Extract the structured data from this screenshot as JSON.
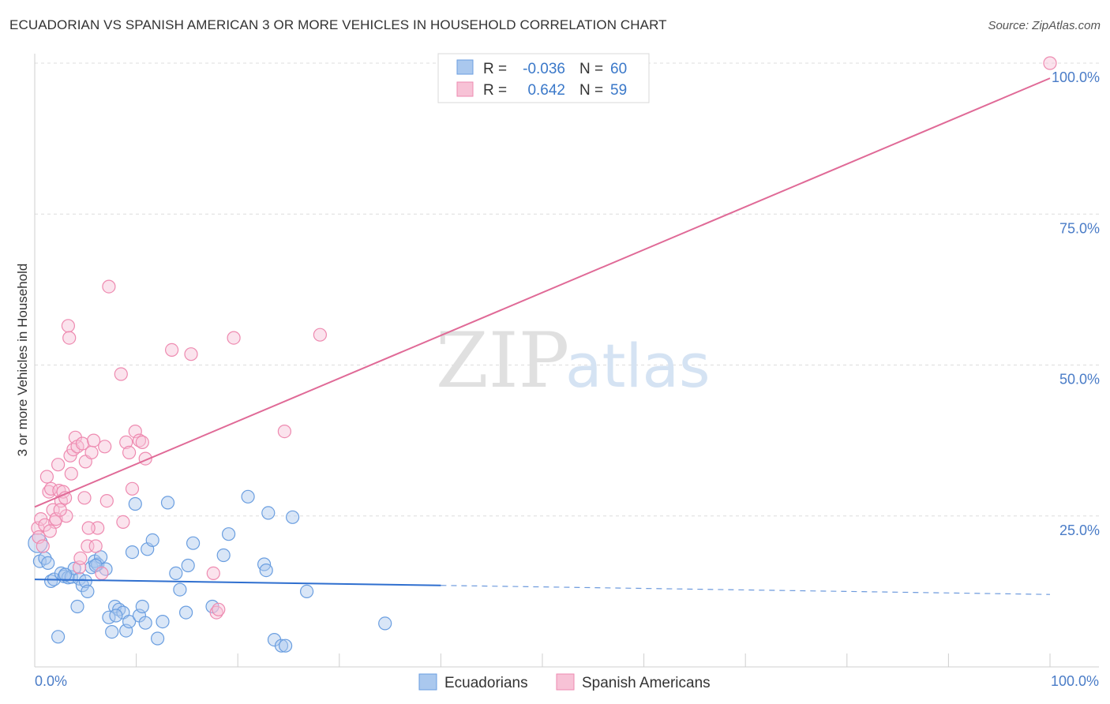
{
  "header": {
    "title": "ECUADORIAN VS SPANISH AMERICAN 3 OR MORE VEHICLES IN HOUSEHOLD CORRELATION CHART",
    "source": "Source: ZipAtlas.com"
  },
  "watermark": {
    "zip": "ZIP",
    "atlas": "atlas"
  },
  "chart_data": {
    "type": "scatter",
    "title": "ECUADORIAN VS SPANISH AMERICAN 3 OR MORE VEHICLES IN HOUSEHOLD CORRELATION CHART",
    "xlabel": "",
    "ylabel": "3 or more Vehicles in Household",
    "xlim": [
      0,
      100
    ],
    "ylim": [
      0,
      100
    ],
    "x_tick_labels": {
      "left": "0.0%",
      "right": "100.0%"
    },
    "y_tick_labels": [
      {
        "value": 100,
        "label": "100.0%"
      },
      {
        "value": 75,
        "label": "75.0%"
      },
      {
        "value": 50,
        "label": "50.0%"
      },
      {
        "value": 25,
        "label": "25.0%"
      }
    ],
    "legend_box": {
      "rows": [
        {
          "r_label": "R =",
          "r_value": "-0.036",
          "n_label": "N =",
          "n_value": "60"
        },
        {
          "r_label": "R =",
          "r_value": "0.642",
          "n_label": "N =",
          "n_value": "59"
        }
      ]
    },
    "series": [
      {
        "name": "Ecuadorians",
        "color": "#6a9ee0",
        "fill": "#aac8ee",
        "trend": {
          "x0": 0,
          "y0": 14.5,
          "x1": 40,
          "y1": 13.5,
          "dashed_to_x": 100,
          "dashed_to_y": 12.0,
          "color": "#2f6fcf"
        },
        "points": [
          [
            0.3,
            20.5
          ],
          [
            0.5,
            17.5
          ],
          [
            1.0,
            18.0
          ],
          [
            1.3,
            17.2
          ],
          [
            1.6,
            14.2
          ],
          [
            1.9,
            14.5
          ],
          [
            2.3,
            5.0
          ],
          [
            2.6,
            15.5
          ],
          [
            2.9,
            15.0
          ],
          [
            3.3,
            14.8
          ],
          [
            3.6,
            14.9
          ],
          [
            3.9,
            16.3
          ],
          [
            4.2,
            10.0
          ],
          [
            4.4,
            14.6
          ],
          [
            4.7,
            13.5
          ],
          [
            5.0,
            14.2
          ],
          [
            5.2,
            12.5
          ],
          [
            5.6,
            16.5
          ],
          [
            5.9,
            17.5
          ],
          [
            6.2,
            17.0
          ],
          [
            6.5,
            18.2
          ],
          [
            7.0,
            16.2
          ],
          [
            7.3,
            8.2
          ],
          [
            7.6,
            5.8
          ],
          [
            7.9,
            10.0
          ],
          [
            8.3,
            9.5
          ],
          [
            8.7,
            9.0
          ],
          [
            9.0,
            6.0
          ],
          [
            9.3,
            7.5
          ],
          [
            9.6,
            19.0
          ],
          [
            9.9,
            27.0
          ],
          [
            10.3,
            8.5
          ],
          [
            10.6,
            10.0
          ],
          [
            10.9,
            7.3
          ],
          [
            11.1,
            19.5
          ],
          [
            11.6,
            21.0
          ],
          [
            12.1,
            4.7
          ],
          [
            12.6,
            7.5
          ],
          [
            13.1,
            27.2
          ],
          [
            13.9,
            15.5
          ],
          [
            14.3,
            12.8
          ],
          [
            14.9,
            9.0
          ],
          [
            15.1,
            16.8
          ],
          [
            15.6,
            20.5
          ],
          [
            17.5,
            10.0
          ],
          [
            18.6,
            18.5
          ],
          [
            19.1,
            22.0
          ],
          [
            21.0,
            28.2
          ],
          [
            22.6,
            17.0
          ],
          [
            22.8,
            16.0
          ],
          [
            23.0,
            25.5
          ],
          [
            23.6,
            4.5
          ],
          [
            24.3,
            3.5
          ],
          [
            24.7,
            3.5
          ],
          [
            25.4,
            24.8
          ],
          [
            26.8,
            12.5
          ],
          [
            34.5,
            7.2
          ],
          [
            3.0,
            15.3
          ],
          [
            6.0,
            16.8
          ],
          [
            8.0,
            8.5
          ]
        ]
      },
      {
        "name": "Spanish Americans",
        "color": "#ee8ab0",
        "fill": "#f7c2d6",
        "trend": {
          "x0": 0,
          "y0": 26.5,
          "x1": 100,
          "y1": 97.5,
          "color": "#e06a97"
        },
        "points": [
          [
            0.3,
            23.0
          ],
          [
            0.4,
            21.5
          ],
          [
            0.6,
            24.5
          ],
          [
            0.8,
            20.0
          ],
          [
            1.0,
            23.5
          ],
          [
            1.2,
            31.5
          ],
          [
            1.4,
            29.0
          ],
          [
            1.6,
            29.5
          ],
          [
            1.8,
            26.0
          ],
          [
            2.0,
            24.0
          ],
          [
            2.1,
            24.5
          ],
          [
            2.3,
            33.5
          ],
          [
            2.4,
            29.2
          ],
          [
            2.6,
            27.5
          ],
          [
            2.8,
            29.0
          ],
          [
            3.0,
            28.0
          ],
          [
            3.1,
            25.0
          ],
          [
            3.3,
            56.5
          ],
          [
            3.5,
            35.0
          ],
          [
            3.6,
            32.0
          ],
          [
            3.8,
            36.0
          ],
          [
            4.0,
            38.0
          ],
          [
            4.2,
            36.5
          ],
          [
            4.4,
            16.5
          ],
          [
            4.5,
            18.0
          ],
          [
            4.7,
            37.0
          ],
          [
            4.9,
            28.0
          ],
          [
            5.0,
            34.0
          ],
          [
            5.2,
            20.0
          ],
          [
            5.6,
            35.5
          ],
          [
            5.8,
            37.5
          ],
          [
            6.0,
            20.0
          ],
          [
            6.2,
            23.0
          ],
          [
            6.6,
            15.5
          ],
          [
            6.9,
            36.5
          ],
          [
            7.1,
            27.5
          ],
          [
            7.3,
            63.0
          ],
          [
            8.5,
            48.5
          ],
          [
            8.7,
            24.0
          ],
          [
            9.0,
            37.2
          ],
          [
            9.3,
            35.5
          ],
          [
            9.6,
            29.5
          ],
          [
            9.9,
            39.0
          ],
          [
            10.3,
            37.5
          ],
          [
            10.6,
            37.2
          ],
          [
            10.9,
            34.5
          ],
          [
            13.5,
            52.5
          ],
          [
            15.4,
            51.8
          ],
          [
            17.6,
            15.5
          ],
          [
            17.9,
            9.0
          ],
          [
            18.1,
            9.5
          ],
          [
            19.6,
            54.5
          ],
          [
            24.6,
            39.0
          ],
          [
            28.1,
            55.0
          ],
          [
            3.4,
            54.5
          ],
          [
            5.3,
            23.0
          ],
          [
            1.5,
            22.5
          ],
          [
            2.5,
            26.0
          ],
          [
            100,
            100.0
          ]
        ]
      }
    ]
  }
}
